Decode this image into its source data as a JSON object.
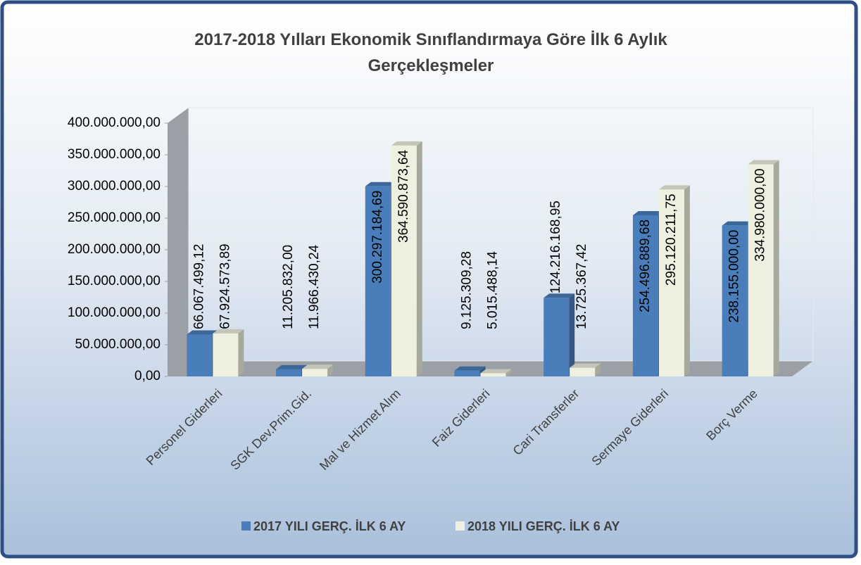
{
  "chart_data": {
    "type": "bar",
    "title": "2017-2018 Yılları Ekonomik Sınıflandırmaya Göre İlk 6 Aylık Gerçekleşmeler",
    "categories": [
      "Personel Giderleri",
      "SGK Dev.Prim.Gid.",
      "Mal ve Hizmet Alım",
      "Faiz Giderleri",
      "Cari Transferler",
      "Sermaye Giderleri",
      "Borç Verme"
    ],
    "series": [
      {
        "name": "2017 YILI GERÇ. İLK 6 AY",
        "color": "#4a7ebb",
        "values": [
          66067499.12,
          11205832.0,
          300297184.69,
          9125309.28,
          124216168.95,
          254496889.68,
          238155000.0
        ],
        "value_labels": [
          "66.067.499,12",
          "11.205.832,00",
          "300.297.184,69",
          "9.125.309,28",
          "124.216.168,95",
          "254.496.889,68",
          "238.155.000,00"
        ]
      },
      {
        "name": "2018 YILI GERÇ. İLK 6 AY",
        "color": "#eef1df",
        "values": [
          67924573.89,
          11966430.24,
          364590873.64,
          5015488.14,
          13725367.42,
          295120211.75,
          334980000.0
        ],
        "value_labels": [
          "67.924.573,89",
          "11.966.430,24",
          "364.590.873,64",
          "5.015.488,14",
          "13.725.367,42",
          "295.120.211,75",
          "334.980.000,00"
        ]
      }
    ],
    "ylim": [
      0,
      400000000
    ],
    "yticks": [
      {
        "value": 0,
        "label": "0,00"
      },
      {
        "value": 50000000,
        "label": "50.000.000,00"
      },
      {
        "value": 100000000,
        "label": "100.000.000,00"
      },
      {
        "value": 150000000,
        "label": "150.000.000,00"
      },
      {
        "value": 200000000,
        "label": "200.000.000,00"
      },
      {
        "value": 250000000,
        "label": "250.000.000,00"
      },
      {
        "value": 300000000,
        "label": "300.000.000,00"
      },
      {
        "value": 350000000,
        "label": "350.000.000,00"
      },
      {
        "value": 400000000,
        "label": "400.000.000,00"
      }
    ],
    "grid": false,
    "legend": "bottom"
  }
}
